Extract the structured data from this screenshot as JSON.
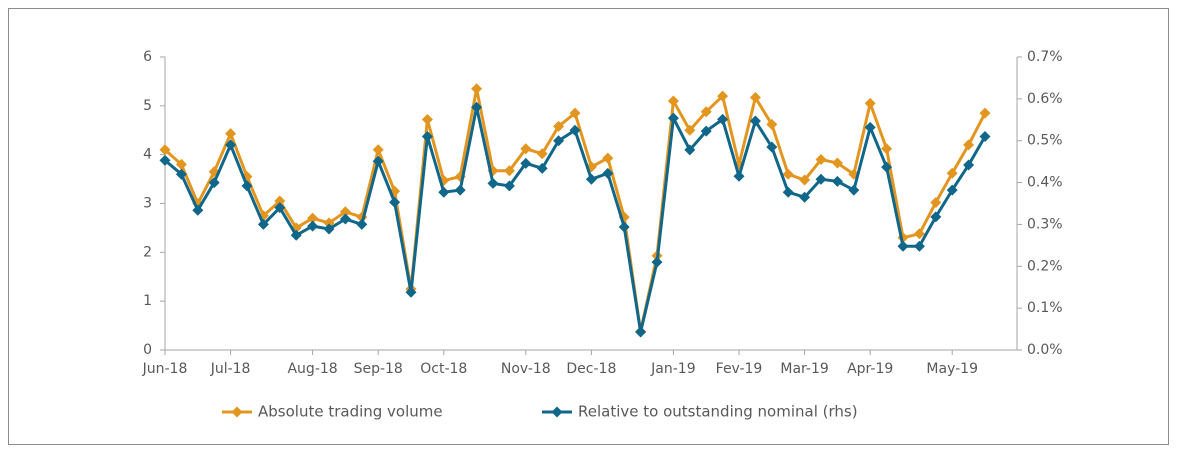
{
  "chart_data": {
    "type": "line",
    "categories": [
      "Jun-18",
      null,
      null,
      null,
      "Jul-18",
      null,
      null,
      null,
      null,
      "Aug-18",
      null,
      null,
      null,
      "Sep-18",
      null,
      null,
      null,
      "Oct-18",
      null,
      null,
      null,
      null,
      "Nov-18",
      null,
      null,
      null,
      "Dec-18",
      null,
      null,
      null,
      null,
      "Jan-19",
      null,
      null,
      null,
      "Fev-19",
      null,
      null,
      null,
      "Mar-19",
      null,
      null,
      null,
      "Apr-19",
      null,
      null,
      null,
      null,
      "May-19",
      null,
      null
    ],
    "series": [
      {
        "name": "Absolute trading volume",
        "color": "#e3961f",
        "values": [
          4.1,
          3.8,
          3.0,
          3.65,
          4.43,
          3.55,
          2.75,
          3.05,
          2.5,
          2.7,
          2.6,
          2.83,
          2.72,
          4.1,
          3.25,
          1.25,
          4.72,
          3.47,
          3.55,
          5.35,
          3.67,
          3.67,
          4.12,
          4.02,
          4.58,
          4.85,
          3.75,
          3.93,
          2.72,
          0.38,
          1.93,
          5.1,
          4.5,
          4.88,
          5.2,
          3.8,
          5.17,
          4.62,
          3.6,
          3.48,
          3.9,
          3.83,
          3.6,
          5.05,
          4.12,
          2.3,
          2.38,
          3.02,
          3.62,
          4.2,
          4.85
        ]
      },
      {
        "name": "Relative to outstanding nominal (rhs)",
        "color": "#10678a",
        "axis": "y2",
        "values": [
          0.453,
          0.42,
          0.334,
          0.4,
          0.49,
          0.392,
          0.3,
          0.34,
          0.274,
          0.296,
          0.289,
          0.313,
          0.3,
          0.451,
          0.353,
          0.138,
          0.51,
          0.377,
          0.382,
          0.58,
          0.398,
          0.392,
          0.446,
          0.434,
          0.5,
          0.525,
          0.408,
          0.422,
          0.294,
          0.043,
          0.21,
          0.554,
          0.478,
          0.523,
          0.551,
          0.415,
          0.547,
          0.485,
          0.377,
          0.365,
          0.408,
          0.403,
          0.382,
          0.532,
          0.437,
          0.248,
          0.248,
          0.318,
          0.382,
          0.442,
          0.51
        ]
      }
    ],
    "ylim": [
      0,
      6
    ],
    "yticks": [
      0,
      1,
      2,
      3,
      4,
      5,
      6
    ],
    "y2lim": [
      0,
      0.7
    ],
    "y2ticks": [
      {
        "value": 0,
        "label": "0.0%"
      },
      {
        "value": 0.1,
        "label": "0.1%"
      },
      {
        "value": 0.2,
        "label": "0.2%"
      },
      {
        "value": 0.3,
        "label": "0.3%"
      },
      {
        "value": 0.4,
        "label": "0.4%"
      },
      {
        "value": 0.5,
        "label": "0.5%"
      },
      {
        "value": 0.6,
        "label": "0.6%"
      },
      {
        "value": 0.7,
        "label": "0.7%"
      }
    ],
    "legend": "bottom"
  }
}
